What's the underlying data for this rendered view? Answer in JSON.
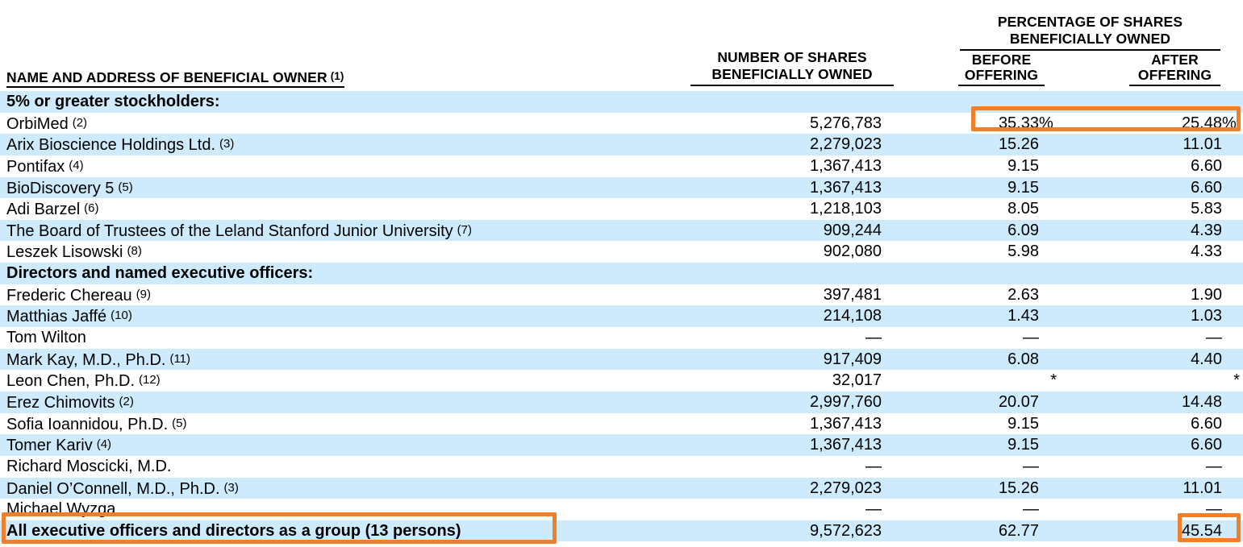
{
  "header": {
    "name_col": {
      "label": "NAME AND ADDRESS OF BENEFICIAL OWNER",
      "footnote": "(1)"
    },
    "shares_col": {
      "line1": "NUMBER OF SHARES",
      "line2": "BENEFICIALLY OWNED"
    },
    "pct_group": {
      "line1": "PERCENTAGE OF SHARES",
      "line2": "BENEFICIALLY OWNED"
    },
    "before_col": {
      "line1": "BEFORE",
      "line2": "OFFERING"
    },
    "after_col": {
      "line1": "AFTER",
      "line2": "OFFERING"
    }
  },
  "colors": {
    "stripe_blue": "#CDEBFC",
    "highlight_orange": "#EE7F2B"
  },
  "rows": [
    {
      "kind": "section",
      "name": "5% or greater stockholders:"
    },
    {
      "kind": "data",
      "name": "OrbiMed",
      "footnote": "(2)",
      "shares": "5,276,783",
      "before": "35.33",
      "before_suffix": "%",
      "after": "25.48",
      "after_suffix": "%"
    },
    {
      "kind": "data",
      "name": "Arix Bioscience Holdings Ltd.",
      "footnote": "(3)",
      "shares": "2,279,023",
      "before": "15.26",
      "after": "11.01"
    },
    {
      "kind": "data",
      "name": "Pontifax",
      "footnote": "(4)",
      "shares": "1,367,413",
      "before": "9.15",
      "after": "6.60"
    },
    {
      "kind": "data",
      "name": "BioDiscovery 5",
      "footnote": "(5)",
      "shares": "1,367,413",
      "before": "9.15",
      "after": "6.60"
    },
    {
      "kind": "data",
      "name": "Adi Barzel",
      "footnote": "(6)",
      "shares": "1,218,103",
      "before": "8.05",
      "after": "5.83"
    },
    {
      "kind": "data",
      "name": "The Board of Trustees of the Leland Stanford Junior University",
      "footnote": "(7)",
      "shares": "909,244",
      "before": "6.09",
      "after": "4.39"
    },
    {
      "kind": "data",
      "name": "Leszek Lisowski",
      "footnote": "(8)",
      "shares": "902,080",
      "before": "5.98",
      "after": "4.33"
    },
    {
      "kind": "section",
      "name": "Directors and named executive officers:"
    },
    {
      "kind": "data",
      "name": "Frederic Chereau",
      "footnote": "(9)",
      "shares": "397,481",
      "before": "2.63",
      "after": "1.90"
    },
    {
      "kind": "data",
      "name": "Matthias Jaffé",
      "footnote": "(10)",
      "shares": "214,108",
      "before": "1.43",
      "after": "1.03"
    },
    {
      "kind": "data",
      "name": "Tom Wilton",
      "shares": "—",
      "before": "—",
      "after": "—"
    },
    {
      "kind": "data",
      "name": "Mark Kay, M.D., Ph.D.",
      "footnote": "(11)",
      "shares": "917,409",
      "before": "6.08",
      "after": "4.40"
    },
    {
      "kind": "data",
      "name": "Leon Chen, Ph.D.",
      "footnote": "(12)",
      "shares": "32,017",
      "before": "*",
      "after": "*"
    },
    {
      "kind": "data",
      "name": "Erez Chimovits",
      "footnote": "(2)",
      "shares": "2,997,760",
      "before": "20.07",
      "after": "14.48"
    },
    {
      "kind": "data",
      "name": "Sofia Ioannidou, Ph.D.",
      "footnote": "(5)",
      "shares": "1,367,413",
      "before": "9.15",
      "after": "6.60"
    },
    {
      "kind": "data",
      "name": "Tomer Kariv",
      "footnote": "(4)",
      "shares": "1,367,413",
      "before": "9.15",
      "after": "6.60"
    },
    {
      "kind": "data",
      "name": "Richard Moscicki, M.D.",
      "shares": "—",
      "before": "—",
      "after": "—"
    },
    {
      "kind": "data",
      "name": "Daniel O’Connell, M.D., Ph.D.",
      "footnote": "(3)",
      "shares": "2,279,023",
      "before": "15.26",
      "after": "11.01"
    },
    {
      "kind": "data",
      "name": "Michael Wyzga",
      "shares": "—",
      "before": "—",
      "after": "—"
    },
    {
      "kind": "total",
      "name": "All executive officers and directors as a group (13 persons)",
      "shares": "9,572,623",
      "before": "62.77",
      "after": "45.54"
    }
  ],
  "annotations": [
    {
      "id": "highlight-orbimed-percentages",
      "encloses": "35.33% / 25.48%"
    },
    {
      "id": "highlight-group-row-label",
      "encloses": "All executive officers and directors as a group (13 persons)"
    },
    {
      "id": "highlight-group-after-offering",
      "encloses": "45.54"
    }
  ]
}
